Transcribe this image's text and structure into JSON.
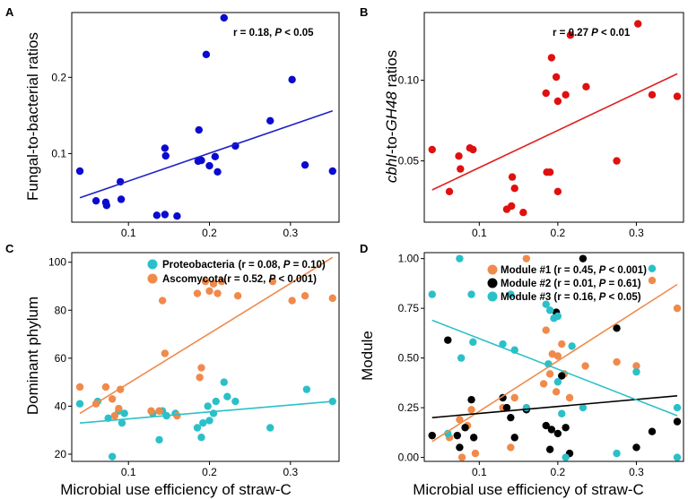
{
  "xlabel": "Microbial use efficiency of straw-C",
  "chart_data": [
    {
      "panel": "A",
      "type": "scatter",
      "ylabel": "Fungal-to-bacterial ratios",
      "xlim": [
        0.03,
        0.36
      ],
      "ylim": [
        0.01,
        0.285
      ],
      "xticks": [
        0.1,
        0.2,
        0.3
      ],
      "yticks": [
        0.1,
        0.2
      ],
      "xtick_labels": [
        "0.1",
        "0.2",
        "0.3"
      ],
      "ytick_labels": [
        "0.1",
        "0.2"
      ],
      "annotation": "r = 0.18, ",
      "annotation_p": "P",
      "annotation_tail": " < 0.05",
      "series": [
        {
          "name": "points",
          "color": "#0a0ad0",
          "points": [
            [
              0.04,
              0.077
            ],
            [
              0.06,
              0.038
            ],
            [
              0.072,
              0.036
            ],
            [
              0.073,
              0.032
            ],
            [
              0.09,
              0.063
            ],
            [
              0.091,
              0.04
            ],
            [
              0.135,
              0.019
            ],
            [
              0.145,
              0.02
            ],
            [
              0.145,
              0.107
            ],
            [
              0.146,
              0.097
            ],
            [
              0.16,
              0.018
            ],
            [
              0.186,
              0.09
            ],
            [
              0.187,
              0.131
            ],
            [
              0.19,
              0.091
            ],
            [
              0.196,
              0.23
            ],
            [
              0.2,
              0.084
            ],
            [
              0.207,
              0.096
            ],
            [
              0.21,
              0.076
            ],
            [
              0.218,
              0.278
            ],
            [
              0.232,
              0.11
            ],
            [
              0.275,
              0.143
            ],
            [
              0.302,
              0.197
            ],
            [
              0.318,
              0.085
            ],
            [
              0.352,
              0.077
            ]
          ]
        }
      ],
      "fit": [
        {
          "color": "#2020c8",
          "x": [
            0.04,
            0.352
          ],
          "y": [
            0.042,
            0.156
          ]
        }
      ]
    },
    {
      "panel": "B",
      "type": "scatter",
      "ylabel_pre": "cbhI",
      "ylabel_mid": "-to-",
      "ylabel_gene": "GH48",
      "ylabel_post": " ratios",
      "xlim": [
        0.03,
        0.36
      ],
      "ylim": [
        0.012,
        0.142
      ],
      "xticks": [
        0.1,
        0.2,
        0.3
      ],
      "yticks": [
        0.05,
        0.1
      ],
      "xtick_labels": [
        "0.1",
        "0.2",
        "0.3"
      ],
      "ytick_labels": [
        "0.05",
        "0.10"
      ],
      "annotation": "r = 0.27 ",
      "annotation_p": "P",
      "annotation_tail": " < 0.01",
      "series": [
        {
          "name": "points",
          "color": "#e01010",
          "points": [
            [
              0.04,
              0.057
            ],
            [
              0.062,
              0.031
            ],
            [
              0.074,
              0.053
            ],
            [
              0.076,
              0.045
            ],
            [
              0.088,
              0.058
            ],
            [
              0.092,
              0.057
            ],
            [
              0.135,
              0.02
            ],
            [
              0.141,
              0.022
            ],
            [
              0.142,
              0.04
            ],
            [
              0.145,
              0.033
            ],
            [
              0.156,
              0.018
            ],
            [
              0.185,
              0.092
            ],
            [
              0.186,
              0.043
            ],
            [
              0.19,
              0.043
            ],
            [
              0.192,
              0.114
            ],
            [
              0.198,
              0.102
            ],
            [
              0.2,
              0.087
            ],
            [
              0.2,
              0.031
            ],
            [
              0.21,
              0.091
            ],
            [
              0.216,
              0.128
            ],
            [
              0.236,
              0.096
            ],
            [
              0.275,
              0.05
            ],
            [
              0.302,
              0.135
            ],
            [
              0.32,
              0.091
            ],
            [
              0.352,
              0.09
            ]
          ]
        }
      ],
      "fit": [
        {
          "color": "#e02020",
          "x": [
            0.04,
            0.352
          ],
          "y": [
            0.032,
            0.104
          ]
        }
      ]
    },
    {
      "panel": "C",
      "type": "scatter",
      "ylabel": "Dominant phylum",
      "xlim": [
        0.03,
        0.36
      ],
      "ylim": [
        17,
        104
      ],
      "xticks": [
        0.1,
        0.2,
        0.3
      ],
      "yticks": [
        20,
        40,
        60,
        80,
        100
      ],
      "xtick_labels": [
        "0.1",
        "0.2",
        "0.3"
      ],
      "ytick_labels": [
        "20",
        "40",
        "60",
        "80",
        "100"
      ],
      "legend_position": "top-right",
      "series": [
        {
          "name": "Proteobacteria",
          "legend_stat": "(r  = 0.08, ",
          "legend_p": "P",
          "legend_tail": " = 0.10)",
          "color": "#2bc0c8",
          "points": [
            [
              0.04,
              41
            ],
            [
              0.062,
              42
            ],
            [
              0.075,
              35
            ],
            [
              0.08,
              19
            ],
            [
              0.088,
              38
            ],
            [
              0.092,
              33
            ],
            [
              0.095,
              37
            ],
            [
              0.13,
              37
            ],
            [
              0.138,
              26
            ],
            [
              0.142,
              38
            ],
            [
              0.147,
              36
            ],
            [
              0.158,
              37
            ],
            [
              0.185,
              31
            ],
            [
              0.19,
              27
            ],
            [
              0.192,
              33
            ],
            [
              0.198,
              40
            ],
            [
              0.2,
              34
            ],
            [
              0.205,
              37
            ],
            [
              0.208,
              42
            ],
            [
              0.218,
              50
            ],
            [
              0.222,
              44
            ],
            [
              0.232,
              42
            ],
            [
              0.275,
              31
            ],
            [
              0.32,
              47
            ],
            [
              0.352,
              42
            ]
          ]
        },
        {
          "name": "Ascomycota",
          "legend_stat": "(r  = 0.52, ",
          "legend_p": "P",
          "legend_tail": " < 0.001)",
          "color": "#f08a4b",
          "points": [
            [
              0.04,
              48
            ],
            [
              0.06,
              41
            ],
            [
              0.072,
              48
            ],
            [
              0.08,
              43
            ],
            [
              0.083,
              36
            ],
            [
              0.088,
              39
            ],
            [
              0.09,
              47
            ],
            [
              0.128,
              38
            ],
            [
              0.138,
              38
            ],
            [
              0.142,
              84
            ],
            [
              0.145,
              62
            ],
            [
              0.16,
              36
            ],
            [
              0.185,
              87
            ],
            [
              0.188,
              52
            ],
            [
              0.19,
              56
            ],
            [
              0.195,
              92
            ],
            [
              0.2,
              88
            ],
            [
              0.205,
              91
            ],
            [
              0.21,
              87
            ],
            [
              0.215,
              92
            ],
            [
              0.235,
              86
            ],
            [
              0.278,
              92
            ],
            [
              0.302,
              84
            ],
            [
              0.318,
              86
            ],
            [
              0.352,
              85
            ]
          ]
        }
      ],
      "fit": [
        {
          "color": "#2bc0c8",
          "x": [
            0.04,
            0.352
          ],
          "y": [
            33,
            42
          ]
        },
        {
          "color": "#f08a4b",
          "x": [
            0.04,
            0.352
          ],
          "y": [
            37,
            102
          ]
        }
      ]
    },
    {
      "panel": "D",
      "type": "scatter",
      "ylabel": "Module",
      "xlim": [
        0.03,
        0.36
      ],
      "ylim": [
        -0.02,
        1.03
      ],
      "xticks": [
        0.1,
        0.2,
        0.3
      ],
      "yticks": [
        0,
        0.25,
        0.5,
        0.75,
        1
      ],
      "xtick_labels": [
        "0.1",
        "0.2",
        "0.3"
      ],
      "ytick_labels": [
        "0.00",
        "0.25",
        "0.50",
        "0.75",
        "1.00"
      ],
      "legend_position": "top-right",
      "series": [
        {
          "name": "Module #1",
          "legend_stat": " (r = 0.45, ",
          "legend_p": "P",
          "legend_tail": " < 0.001)",
          "color": "#f08a4b",
          "points": [
            [
              0.04,
              0.11
            ],
            [
              0.062,
              0.1
            ],
            [
              0.075,
              0.19
            ],
            [
              0.078,
              0.0
            ],
            [
              0.085,
              0.16
            ],
            [
              0.09,
              0.24
            ],
            [
              0.095,
              0.02
            ],
            [
              0.13,
              0.25
            ],
            [
              0.14,
              0.05
            ],
            [
              0.145,
              0.3
            ],
            [
              0.16,
              1.0
            ],
            [
              0.182,
              0.37
            ],
            [
              0.185,
              0.64
            ],
            [
              0.19,
              0.42
            ],
            [
              0.193,
              0.52
            ],
            [
              0.198,
              0.33
            ],
            [
              0.2,
              0.51
            ],
            [
              0.205,
              0.57
            ],
            [
              0.208,
              0.42
            ],
            [
              0.215,
              0.3
            ],
            [
              0.235,
              0.46
            ],
            [
              0.275,
              0.48
            ],
            [
              0.3,
              0.46
            ],
            [
              0.32,
              0.89
            ],
            [
              0.352,
              0.75
            ]
          ]
        },
        {
          "name": "Module #2",
          "legend_stat": " (r = 0.01, ",
          "legend_p": "P",
          "legend_tail": " = 0.61)",
          "color": "#000000",
          "points": [
            [
              0.04,
              0.11
            ],
            [
              0.06,
              0.59
            ],
            [
              0.072,
              0.11
            ],
            [
              0.075,
              0.05
            ],
            [
              0.082,
              0.15
            ],
            [
              0.09,
              0.29
            ],
            [
              0.093,
              0.1
            ],
            [
              0.13,
              0.3
            ],
            [
              0.135,
              0.25
            ],
            [
              0.14,
              0.2
            ],
            [
              0.145,
              0.1
            ],
            [
              0.16,
              0.24
            ],
            [
              0.185,
              0.16
            ],
            [
              0.19,
              0.04
            ],
            [
              0.192,
              0.14
            ],
            [
              0.198,
              0.73
            ],
            [
              0.2,
              0.12
            ],
            [
              0.205,
              0.41
            ],
            [
              0.21,
              0.15
            ],
            [
              0.215,
              0.02
            ],
            [
              0.232,
              1.0
            ],
            [
              0.275,
              0.65
            ],
            [
              0.3,
              0.05
            ],
            [
              0.32,
              0.13
            ],
            [
              0.352,
              0.18
            ]
          ]
        },
        {
          "name": "Module #3",
          "legend_stat": " (r = 0.16, ",
          "legend_p": "P",
          "legend_tail": " < 0.05)",
          "color": "#2bc0c8",
          "points": [
            [
              0.04,
              0.82
            ],
            [
              0.06,
              0.12
            ],
            [
              0.075,
              1.0
            ],
            [
              0.077,
              0.5
            ],
            [
              0.09,
              0.82
            ],
            [
              0.092,
              0.58
            ],
            [
              0.13,
              0.57
            ],
            [
              0.14,
              0.82
            ],
            [
              0.145,
              0.54
            ],
            [
              0.16,
              0.25
            ],
            [
              0.185,
              0.77
            ],
            [
              0.188,
              0.47
            ],
            [
              0.19,
              0.74
            ],
            [
              0.195,
              0.7
            ],
            [
              0.2,
              0.71
            ],
            [
              0.2,
              0.38
            ],
            [
              0.205,
              0.22
            ],
            [
              0.21,
              0.0
            ],
            [
              0.218,
              0.56
            ],
            [
              0.232,
              0.25
            ],
            [
              0.275,
              0.02
            ],
            [
              0.3,
              0.43
            ],
            [
              0.32,
              0.95
            ],
            [
              0.352,
              0.25
            ],
            [
              0.352,
              0.0
            ]
          ]
        }
      ],
      "fit": [
        {
          "color": "#f08a4b",
          "x": [
            0.04,
            0.352
          ],
          "y": [
            0.08,
            0.87
          ]
        },
        {
          "color": "#000000",
          "x": [
            0.04,
            0.352
          ],
          "y": [
            0.2,
            0.31
          ]
        },
        {
          "color": "#2bc0c8",
          "x": [
            0.04,
            0.352
          ],
          "y": [
            0.69,
            0.21
          ]
        }
      ]
    }
  ]
}
